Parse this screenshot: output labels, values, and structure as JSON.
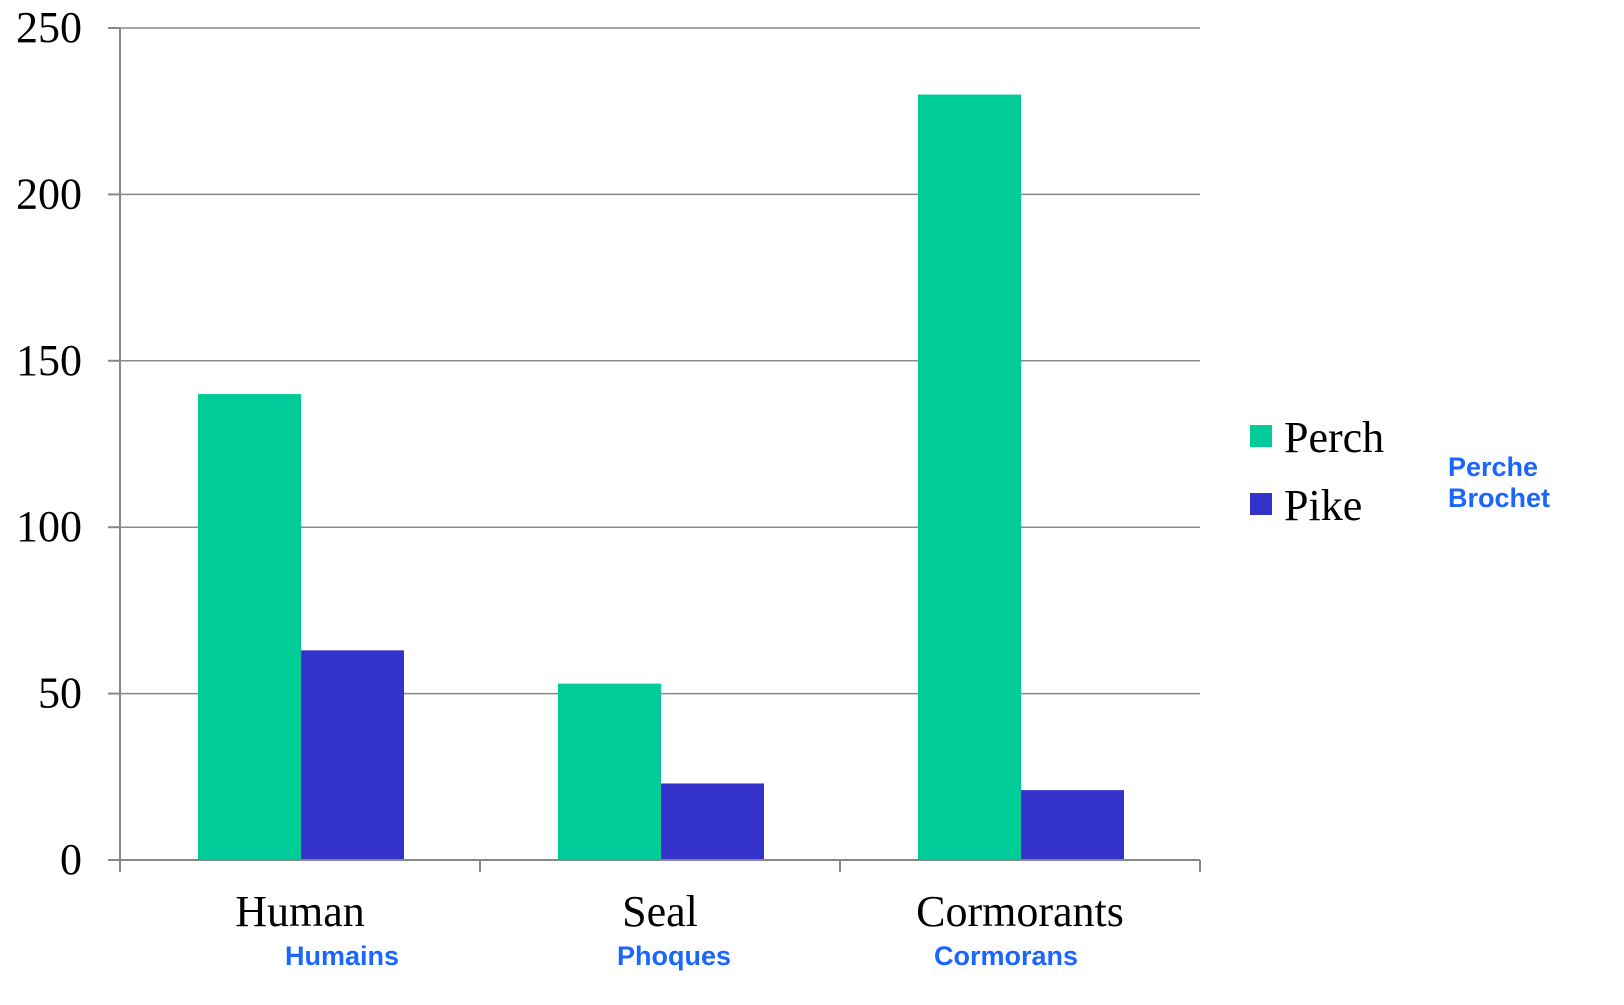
{
  "chart_data": {
    "type": "bar",
    "title": "",
    "xlabel": "",
    "ylabel": "",
    "categories": [
      "Human",
      "Seal",
      "Cormorants"
    ],
    "category_translations": [
      "Humains",
      "Phoques",
      "Cormorans"
    ],
    "series": [
      {
        "name": "Perch",
        "values": [
          140,
          53,
          230
        ],
        "color": "#00cc99"
      },
      {
        "name": "Pike",
        "values": [
          63,
          23,
          21
        ],
        "color": "#3333cc"
      }
    ],
    "legend_translations": [
      "Perche",
      "Brochet"
    ],
    "yticks": [
      "0",
      "50",
      "100",
      "150",
      "200",
      "250"
    ],
    "ylim": [
      0,
      250
    ],
    "grid": true,
    "legend_position": "right",
    "translation_color": "#1a66ff",
    "axis_color": "#888888",
    "grid_color": "#888888"
  }
}
